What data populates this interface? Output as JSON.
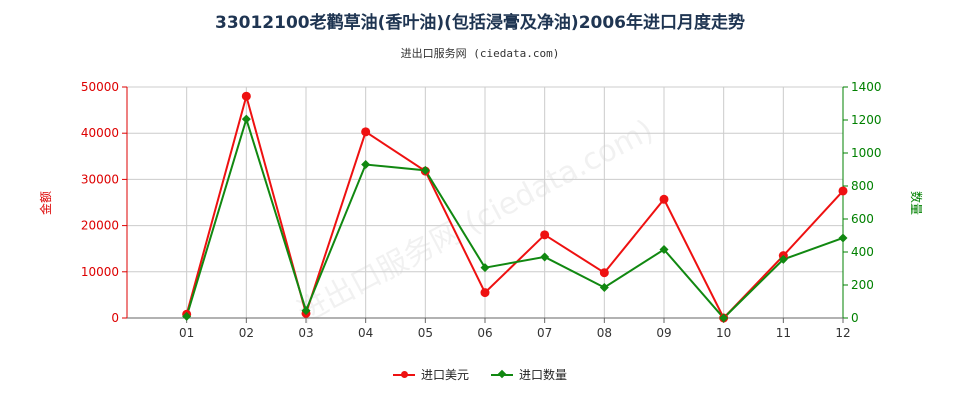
{
  "title": "33012100老鹳草油(香叶油)(包括浸膏及净油)2006年进口月度走势",
  "subtitle": "进出口服务网 (ciedata.com)",
  "watermark": "进出口服务网 (ciedata.com)",
  "colors": {
    "left_axis": "#dd0000",
    "right_axis": "#008000",
    "line1": "#ee1111",
    "line2": "#118811",
    "title": "#1f3552"
  },
  "chart_data": {
    "type": "line",
    "categories": [
      "01",
      "02",
      "03",
      "04",
      "05",
      "06",
      "07",
      "08",
      "09",
      "10",
      "11",
      "12"
    ],
    "y_left": {
      "label": "金额",
      "ylim": [
        0,
        50000
      ],
      "ticks": [
        "0",
        "10000",
        "20000",
        "30000",
        "40000",
        "50000"
      ],
      "tick_values": [
        0,
        10000,
        20000,
        30000,
        40000,
        50000
      ]
    },
    "y_right": {
      "label": "数量",
      "ylim": [
        0,
        1400
      ],
      "ticks": [
        "0",
        "200",
        "400",
        "600",
        "800",
        "1000",
        "1200",
        "1400"
      ],
      "tick_values": [
        0,
        200,
        400,
        600,
        800,
        1000,
        1200,
        1400
      ]
    },
    "series": [
      {
        "name": "进口美元",
        "axis": "left",
        "marker": "circle",
        "values": [
          800,
          48000,
          1000,
          40300,
          31800,
          5500,
          18000,
          9800,
          25700,
          0,
          13500,
          27500
        ]
      },
      {
        "name": "进口数量",
        "axis": "right",
        "marker": "diamond",
        "values": [
          10,
          1205,
          45,
          930,
          895,
          305,
          370,
          185,
          415,
          0,
          355,
          485
        ]
      }
    ],
    "grid": true,
    "legend": "bottom-center"
  }
}
